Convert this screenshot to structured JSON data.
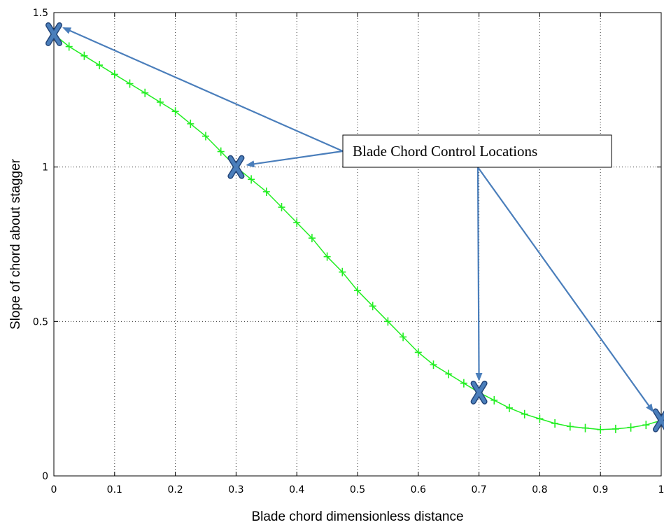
{
  "chart_data": {
    "type": "line",
    "title": "",
    "xlabel": "Blade chord dimensionless distance",
    "ylabel": "Slope of chord about stagger",
    "xlim": [
      0,
      1
    ],
    "ylim": [
      0,
      1.5
    ],
    "xticks": [
      "0",
      "0.1",
      "0.2",
      "0.3",
      "0.4",
      "0.5",
      "0.6",
      "0.7",
      "0.8",
      "0.9",
      "1"
    ],
    "yticks": [
      "0",
      "0.5",
      "1",
      "1.5"
    ],
    "grid": true,
    "series": [
      {
        "name": "",
        "color": "#22ee22",
        "marker": "plus",
        "x": [
          0,
          0.025,
          0.05,
          0.075,
          0.1,
          0.125,
          0.15,
          0.175,
          0.2,
          0.225,
          0.25,
          0.275,
          0.3,
          0.325,
          0.35,
          0.375,
          0.4,
          0.425,
          0.45,
          0.475,
          0.5,
          0.525,
          0.55,
          0.575,
          0.6,
          0.625,
          0.65,
          0.675,
          0.7,
          0.725,
          0.75,
          0.775,
          0.8,
          0.825,
          0.85,
          0.875,
          0.9,
          0.925,
          0.95,
          0.975,
          1.0
        ],
        "y": [
          1.43,
          1.39,
          1.36,
          1.33,
          1.3,
          1.27,
          1.24,
          1.21,
          1.18,
          1.14,
          1.1,
          1.05,
          1.0,
          0.96,
          0.92,
          0.87,
          0.82,
          0.77,
          0.71,
          0.66,
          0.6,
          0.55,
          0.5,
          0.45,
          0.4,
          0.36,
          0.33,
          0.3,
          0.27,
          0.245,
          0.22,
          0.2,
          0.185,
          0.17,
          0.16,
          0.155,
          0.15,
          0.152,
          0.157,
          0.165,
          0.18
        ]
      }
    ],
    "control_points": [
      {
        "x": 0.0,
        "y": 1.43
      },
      {
        "x": 0.3,
        "y": 1.0
      },
      {
        "x": 0.7,
        "y": 0.27
      },
      {
        "x": 1.0,
        "y": 0.18
      }
    ],
    "annotation": {
      "text": "Blade Chord Control Locations",
      "color": "#4a7ebb"
    }
  }
}
